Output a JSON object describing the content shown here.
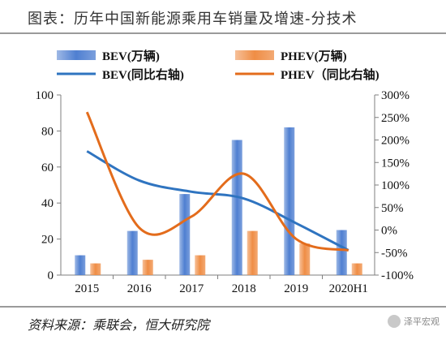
{
  "title": "图表：历年中国新能源乘用车销量及增速-分技术",
  "source": "资料来源：乘联会，恒大研究院",
  "watermark": "泽平宏观",
  "colors": {
    "bev_bar": "#4f7fd1",
    "phev_bar": "#ef8d45",
    "bev_line": "#2f74c0",
    "phev_line": "#e36c1c"
  },
  "chart_data": {
    "type": "bar+line",
    "categories": [
      "2015",
      "2016",
      "2017",
      "2018",
      "2019",
      "2020H1"
    ],
    "y_left": {
      "min": 0,
      "max": 100,
      "ticks": [
        0,
        20,
        40,
        60,
        80,
        100
      ]
    },
    "y_right": {
      "min": -100,
      "max": 300,
      "ticks": [
        "-100%",
        "-50%",
        "0%",
        "50%",
        "100%",
        "150%",
        "200%",
        "250%",
        "300%"
      ]
    },
    "bars": [
      {
        "name": "BEV(万辆)",
        "values": [
          11,
          24.5,
          45,
          75,
          82,
          25
        ]
      },
      {
        "name": "PHEV(万辆)",
        "values": [
          6.5,
          8.5,
          11,
          24.5,
          17.5,
          6.5
        ]
      }
    ],
    "lines": [
      {
        "name": "BEV(同比右轴)",
        "values": [
          175,
          110,
          85,
          70,
          15,
          -45
        ]
      },
      {
        "name": "PHEV（同比右轴)",
        "values": [
          262,
          5,
          30,
          125,
          -20,
          -45
        ]
      }
    ],
    "legend_position": "top"
  }
}
